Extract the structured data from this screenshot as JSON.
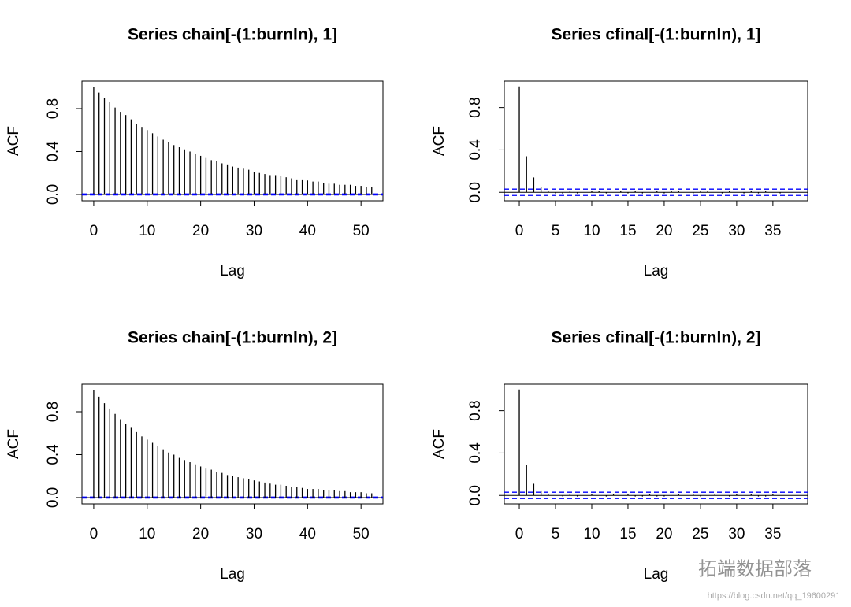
{
  "chart_data": [
    {
      "type": "acf",
      "title": "Series  chain[-(1:burnIn), 1]",
      "x_label": "Lag",
      "y_label": "ACF",
      "xlim": [
        -2.2,
        54.1
      ],
      "ylim": [
        -0.059,
        1.057
      ],
      "xticks": [
        0,
        10,
        20,
        30,
        40,
        50
      ],
      "yticks": [
        {
          "value": 0,
          "label": "0.0"
        },
        {
          "value": 0.4,
          "label": "0.4"
        },
        {
          "value": 0.8,
          "label": "0.8"
        }
      ],
      "ci_bound": 0.005,
      "ci_color": "#0000ff",
      "color": "#000000",
      "values": [
        1,
        0.95,
        0.9,
        0.86,
        0.81,
        0.77,
        0.74,
        0.7,
        0.66,
        0.63,
        0.6,
        0.57,
        0.54,
        0.51,
        0.49,
        0.46,
        0.44,
        0.42,
        0.4,
        0.38,
        0.36,
        0.34,
        0.32,
        0.31,
        0.29,
        0.28,
        0.26,
        0.25,
        0.24,
        0.23,
        0.21,
        0.2,
        0.19,
        0.18,
        0.18,
        0.17,
        0.16,
        0.15,
        0.14,
        0.14,
        0.13,
        0.12,
        0.12,
        0.11,
        0.1,
        0.1,
        0.09,
        0.09,
        0.09,
        0.08,
        0.08,
        0.07,
        0.07
      ]
    },
    {
      "type": "acf",
      "title": "Series  cfinal[-(1:burnIn), 1]",
      "x_label": "Lag",
      "y_label": "ACF",
      "xlim": [
        -2.07,
        39.8
      ],
      "ylim": [
        -0.08,
        1.05
      ],
      "xticks": [
        0,
        5,
        10,
        15,
        20,
        25,
        30,
        35
      ],
      "yticks": [
        {
          "value": 0,
          "label": "0.0"
        },
        {
          "value": 0.4,
          "label": "0.4"
        },
        {
          "value": 0.8,
          "label": "0.8"
        }
      ],
      "ci_bound": 0.03,
      "ci_color": "#0000ff",
      "color": "#000000",
      "values": [
        1,
        0.34,
        0.14,
        0.05,
        0.01,
        -0.01,
        -0.02,
        0.01,
        -0.01,
        0,
        0.01,
        0.01,
        -0.01,
        0,
        0.01,
        -0.01,
        0.01,
        -0.01,
        0,
        0.01,
        -0.01,
        0.01,
        0.01,
        0,
        -0.01,
        0.01,
        0.01,
        0,
        -0.01,
        0.01,
        0,
        -0.01,
        0.01,
        -0.01,
        0.01,
        0,
        -0.01
      ]
    },
    {
      "type": "acf",
      "title": "Series  chain[-(1:burnIn), 2]",
      "x_label": "Lag",
      "y_label": "ACF",
      "xlim": [
        -2.2,
        54.1
      ],
      "ylim": [
        -0.059,
        1.057
      ],
      "xticks": [
        0,
        10,
        20,
        30,
        40,
        50
      ],
      "yticks": [
        {
          "value": 0,
          "label": "0.0"
        },
        {
          "value": 0.4,
          "label": "0.4"
        },
        {
          "value": 0.8,
          "label": "0.8"
        }
      ],
      "ci_bound": 0.005,
      "ci_color": "#0000ff",
      "color": "#000000",
      "values": [
        1,
        0.94,
        0.88,
        0.83,
        0.78,
        0.73,
        0.69,
        0.65,
        0.61,
        0.57,
        0.54,
        0.51,
        0.48,
        0.45,
        0.42,
        0.4,
        0.37,
        0.35,
        0.33,
        0.31,
        0.29,
        0.27,
        0.26,
        0.24,
        0.23,
        0.21,
        0.2,
        0.19,
        0.18,
        0.17,
        0.16,
        0.15,
        0.14,
        0.13,
        0.12,
        0.12,
        0.11,
        0.1,
        0.1,
        0.09,
        0.08,
        0.08,
        0.08,
        0.07,
        0.07,
        0.07,
        0.06,
        0.06,
        0.05,
        0.05,
        0.05,
        0.04,
        0.04
      ]
    },
    {
      "type": "acf",
      "title": "Series  cfinal[-(1:burnIn), 2]",
      "x_label": "Lag",
      "y_label": "ACF",
      "xlim": [
        -2.07,
        39.8
      ],
      "ylim": [
        -0.08,
        1.05
      ],
      "xticks": [
        0,
        5,
        10,
        15,
        20,
        25,
        30,
        35
      ],
      "yticks": [
        {
          "value": 0,
          "label": "0.0"
        },
        {
          "value": 0.4,
          "label": "0.4"
        },
        {
          "value": 0.8,
          "label": "0.8"
        }
      ],
      "ci_bound": 0.03,
      "ci_color": "#0000ff",
      "color": "#000000",
      "values": [
        1,
        0.29,
        0.11,
        0.04,
        0.01,
        0,
        -0.01,
        0.01,
        -0.01,
        0,
        0.01,
        0,
        -0.01,
        0.01,
        0,
        0.01,
        -0.01,
        -0.01,
        0.01,
        -0.01,
        -0.01,
        0,
        0.01,
        0,
        0.01,
        -0.01,
        0,
        0.01,
        0,
        -0.01,
        0.01,
        0,
        0.01,
        -0.01,
        -0.01,
        0.01,
        0
      ]
    }
  ],
  "watermark": {
    "brand": "拓端数据部落",
    "url": "https://blog.csdn.net/qq_19600291"
  }
}
